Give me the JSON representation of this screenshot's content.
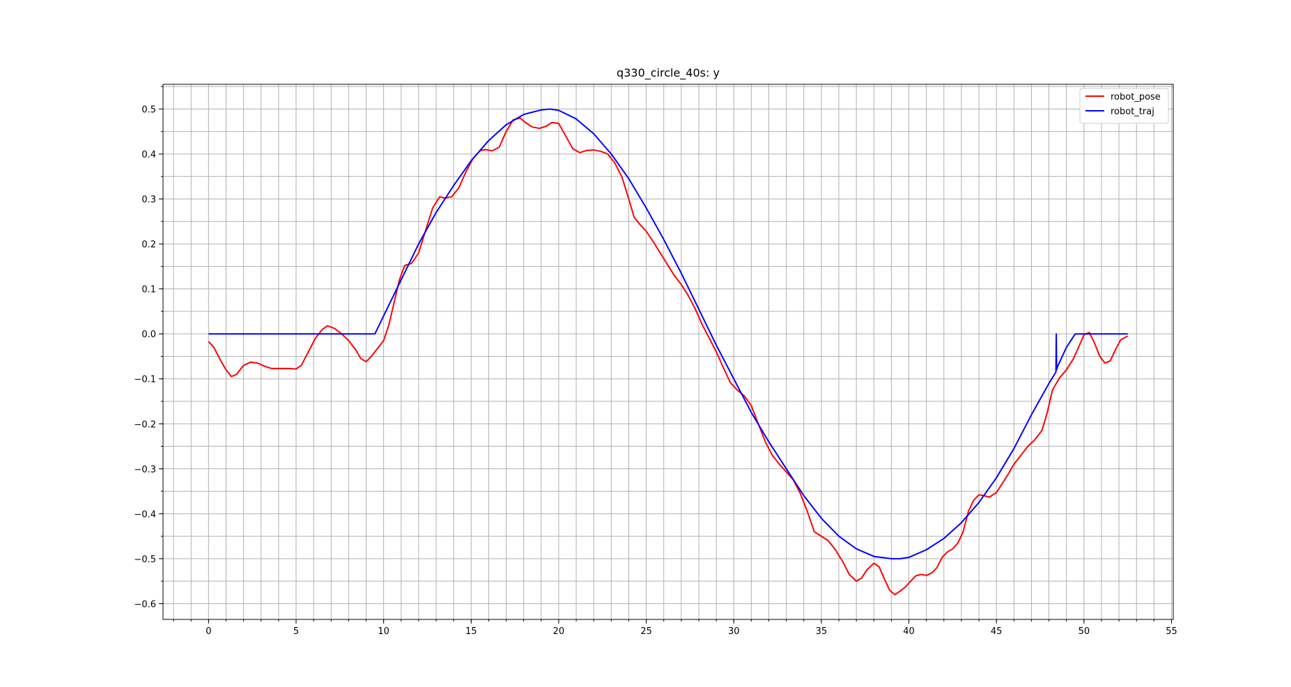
{
  "chart_data": {
    "type": "line",
    "title": "q330_circle_40s: y",
    "xlabel": "",
    "ylabel": "",
    "xlim": [
      -2.6,
      55.1
    ],
    "ylim": [
      -0.635,
      0.555
    ],
    "x_ticks": [
      0,
      5,
      10,
      15,
      20,
      25,
      30,
      35,
      40,
      45,
      50,
      55
    ],
    "x_tick_labels": [
      "0",
      "5",
      "10",
      "15",
      "20",
      "25",
      "30",
      "35",
      "40",
      "45",
      "50",
      "55"
    ],
    "x_minor_step": 1,
    "y_ticks": [
      -0.6,
      -0.5,
      -0.4,
      -0.3,
      -0.2,
      -0.1,
      0.0,
      0.1,
      0.2,
      0.3,
      0.4,
      0.5
    ],
    "y_tick_labels": [
      "−0.6",
      "−0.5",
      "−0.4",
      "−0.3",
      "−0.2",
      "−0.1",
      "0.0",
      "0.1",
      "0.2",
      "0.3",
      "0.4",
      "0.5"
    ],
    "y_minor_step": 0.05,
    "grid": true,
    "legend_position": "top-right",
    "series": [
      {
        "name": "robot_pose",
        "color": "#ff0000",
        "x": [
          0,
          0.3,
          0.7,
          1.0,
          1.3,
          1.6,
          2.0,
          2.4,
          2.8,
          3.2,
          3.6,
          4.0,
          4.5,
          5.0,
          5.3,
          5.7,
          6.1,
          6.5,
          6.8,
          7.2,
          7.6,
          8.0,
          8.4,
          8.7,
          9.0,
          9.3,
          9.6,
          10.0,
          10.3,
          10.6,
          10.9,
          11.2,
          11.6,
          12.0,
          12.4,
          12.8,
          13.2,
          13.5,
          13.9,
          14.3,
          14.7,
          15.1,
          15.5,
          15.8,
          16.2,
          16.6,
          17.0,
          17.4,
          17.8,
          18.1,
          18.5,
          18.9,
          19.3,
          19.6,
          20.0,
          20.4,
          20.8,
          21.2,
          21.6,
          22.0,
          22.4,
          22.8,
          23.2,
          23.6,
          24.0,
          24.3,
          24.6,
          25.0,
          25.4,
          25.8,
          26.2,
          26.6,
          27.0,
          27.4,
          27.8,
          28.2,
          28.6,
          29.0,
          29.4,
          29.8,
          30.2,
          30.6,
          31.0,
          31.4,
          31.8,
          32.2,
          32.6,
          33.0,
          33.4,
          33.8,
          34.2,
          34.6,
          35.0,
          35.4,
          35.8,
          36.2,
          36.6,
          37.0,
          37.3,
          37.6,
          38.0,
          38.3,
          38.6,
          38.9,
          39.2,
          39.5,
          39.8,
          40.1,
          40.4,
          40.7,
          41.0,
          41.3,
          41.6,
          41.9,
          42.2,
          42.5,
          42.8,
          43.1,
          43.4,
          43.7,
          44.0,
          44.3,
          44.6,
          45.0,
          45.3,
          45.7,
          46.0,
          46.4,
          46.8,
          47.2,
          47.6,
          47.9,
          48.2,
          48.6,
          49.0,
          49.4,
          49.8,
          50.0,
          50.3,
          50.6,
          50.9,
          51.2,
          51.5,
          51.8,
          52.1,
          52.5
        ],
        "y": [
          -0.017,
          -0.03,
          -0.06,
          -0.08,
          -0.095,
          -0.09,
          -0.07,
          -0.063,
          -0.065,
          -0.072,
          -0.077,
          -0.077,
          -0.077,
          -0.078,
          -0.07,
          -0.04,
          -0.01,
          0.01,
          0.018,
          0.012,
          0.0,
          -0.015,
          -0.035,
          -0.055,
          -0.062,
          -0.05,
          -0.035,
          -0.015,
          0.02,
          0.07,
          0.12,
          0.152,
          0.157,
          0.18,
          0.23,
          0.28,
          0.305,
          0.302,
          0.305,
          0.325,
          0.36,
          0.39,
          0.407,
          0.41,
          0.407,
          0.415,
          0.45,
          0.476,
          0.48,
          0.47,
          0.46,
          0.457,
          0.462,
          0.47,
          0.468,
          0.44,
          0.412,
          0.403,
          0.408,
          0.409,
          0.406,
          0.4,
          0.38,
          0.35,
          0.3,
          0.26,
          0.245,
          0.228,
          0.205,
          0.18,
          0.155,
          0.13,
          0.11,
          0.085,
          0.055,
          0.02,
          -0.01,
          -0.04,
          -0.075,
          -0.108,
          -0.125,
          -0.138,
          -0.16,
          -0.2,
          -0.24,
          -0.27,
          -0.29,
          -0.307,
          -0.325,
          -0.355,
          -0.395,
          -0.44,
          -0.45,
          -0.46,
          -0.48,
          -0.505,
          -0.535,
          -0.55,
          -0.543,
          -0.525,
          -0.51,
          -0.518,
          -0.545,
          -0.57,
          -0.58,
          -0.572,
          -0.563,
          -0.55,
          -0.538,
          -0.535,
          -0.537,
          -0.532,
          -0.52,
          -0.497,
          -0.485,
          -0.478,
          -0.465,
          -0.44,
          -0.395,
          -0.37,
          -0.358,
          -0.36,
          -0.363,
          -0.353,
          -0.335,
          -0.31,
          -0.29,
          -0.27,
          -0.25,
          -0.235,
          -0.215,
          -0.175,
          -0.125,
          -0.098,
          -0.08,
          -0.055,
          -0.02,
          -0.002,
          0.003,
          -0.02,
          -0.05,
          -0.065,
          -0.06,
          -0.035,
          -0.013,
          -0.005
        ]
      },
      {
        "name": "robot_traj",
        "color": "#0000ff",
        "x": [
          0,
          1,
          2,
          3,
          4,
          5,
          6,
          7,
          8,
          9,
          9.5,
          10,
          11,
          12,
          13,
          14,
          15,
          16,
          17,
          18,
          19,
          19.5,
          20,
          21,
          22,
          23,
          24,
          25,
          26,
          27,
          28,
          29,
          30,
          31,
          32,
          33,
          34,
          35,
          36,
          37,
          38,
          39,
          39.5,
          40,
          41,
          42,
          43,
          44,
          45,
          46,
          47,
          48,
          48.4,
          48.42,
          48.44,
          48.5,
          49,
          49.5,
          50,
          51,
          52,
          52.5
        ],
        "y": [
          0,
          0,
          0,
          0,
          0,
          0,
          0,
          0,
          0,
          0,
          0,
          0.04,
          0.12,
          0.2,
          0.27,
          0.33,
          0.385,
          0.43,
          0.465,
          0.488,
          0.498,
          0.5,
          0.497,
          0.478,
          0.445,
          0.4,
          0.345,
          0.28,
          0.21,
          0.135,
          0.055,
          -0.025,
          -0.1,
          -0.175,
          -0.24,
          -0.3,
          -0.36,
          -0.41,
          -0.45,
          -0.478,
          -0.495,
          -0.5,
          -0.5,
          -0.497,
          -0.48,
          -0.455,
          -0.42,
          -0.375,
          -0.32,
          -0.255,
          -0.18,
          -0.11,
          -0.085,
          0,
          -0.08,
          -0.072,
          -0.03,
          0,
          0,
          0,
          0,
          0
        ]
      }
    ]
  }
}
